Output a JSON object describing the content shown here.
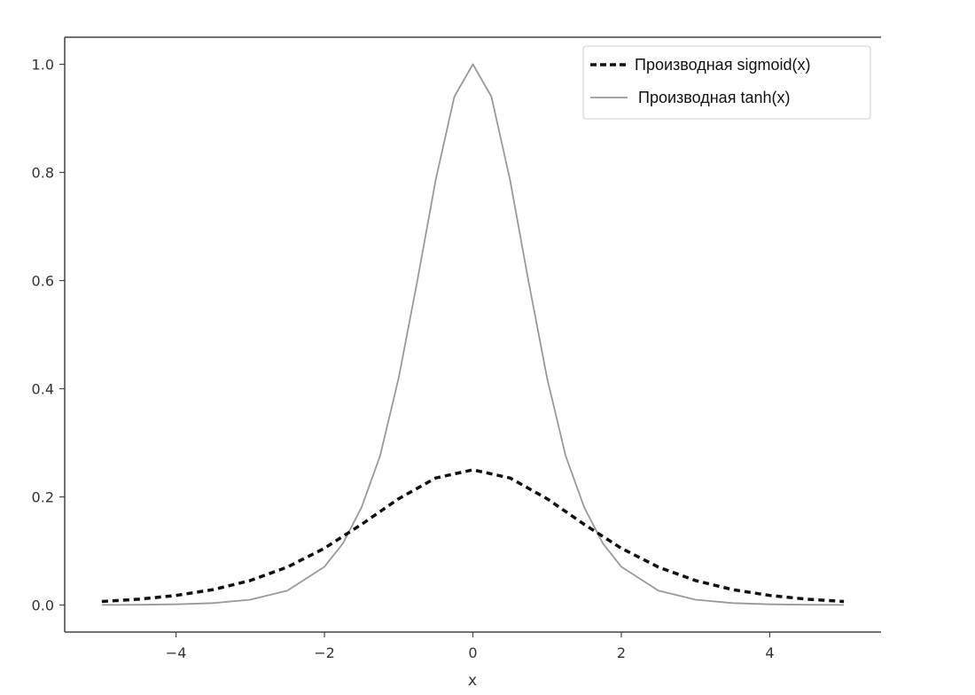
{
  "chart_data": {
    "type": "line",
    "title": "",
    "xlabel": "x",
    "ylabel": "",
    "xlim": [
      -5.5,
      5.5
    ],
    "ylim": [
      -0.05,
      1.05
    ],
    "x_ticks": [
      -4,
      -2,
      0,
      2,
      4
    ],
    "x_tick_labels": [
      "−4",
      "−2",
      "0",
      "2",
      "4"
    ],
    "y_ticks": [
      0.0,
      0.2,
      0.4,
      0.6,
      0.8,
      1.0
    ],
    "y_tick_labels": [
      "0.0",
      "0.2",
      "0.4",
      "0.6",
      "0.8",
      "1.0"
    ],
    "grid": false,
    "legend_position": "top-right",
    "series": [
      {
        "name": "Производная sigmoid(x)",
        "style": "dashed",
        "color": "#111111",
        "x": [
          -5,
          -4.5,
          -4,
          -3.5,
          -3,
          -2.5,
          -2,
          -1.5,
          -1,
          -0.5,
          0,
          0.5,
          1,
          1.5,
          2,
          2.5,
          3,
          3.5,
          4,
          4.5,
          5
        ],
        "y": [
          0.0066,
          0.0109,
          0.0177,
          0.0285,
          0.0452,
          0.0701,
          0.105,
          0.1491,
          0.1966,
          0.235,
          0.25,
          0.235,
          0.1966,
          0.1491,
          0.105,
          0.0701,
          0.0452,
          0.0285,
          0.0177,
          0.0109,
          0.0066
        ]
      },
      {
        "name": "Производная tanh(x)",
        "style": "solid",
        "color": "#999999",
        "x": [
          -5,
          -4.5,
          -4,
          -3.5,
          -3,
          -2.5,
          -2,
          -1.75,
          -1.5,
          -1.25,
          -1,
          -0.75,
          -0.5,
          -0.25,
          0,
          0.25,
          0.5,
          0.75,
          1,
          1.25,
          1.5,
          1.75,
          2,
          2.5,
          3,
          3.5,
          4,
          4.5,
          5
        ],
        "y": [
          0.0002,
          0.0005,
          0.0013,
          0.0036,
          0.0099,
          0.0266,
          0.0707,
          0.1142,
          0.1807,
          0.2757,
          0.42,
          0.5984,
          0.7864,
          0.9401,
          1.0,
          0.9401,
          0.7864,
          0.5984,
          0.42,
          0.2757,
          0.1807,
          0.1142,
          0.0707,
          0.0266,
          0.0099,
          0.0036,
          0.0013,
          0.0005,
          0.0002
        ]
      }
    ]
  }
}
